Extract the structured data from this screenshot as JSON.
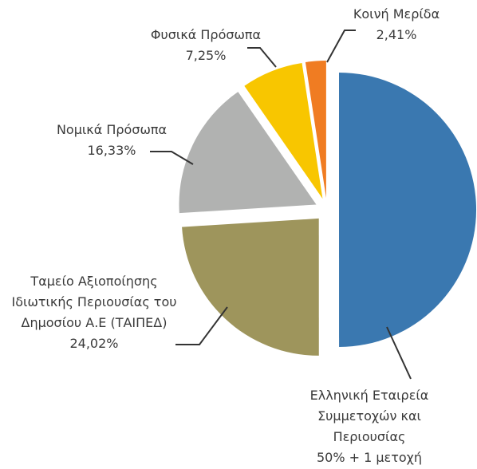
{
  "chart_data": {
    "type": "pie",
    "categories": [
      "Ελληνική Εταιρεία Συμμετοχών και Περιουσίας",
      "Ταμείο Αξιοποίησης Ιδιωτικής Περιουσίας του Δημοσίου Α.Ε (ΤΑΙΠΕΔ)",
      "Νομικά Πρόσωπα",
      "Φυσικά Πρόσωπα",
      "Κοινή Μερίδα"
    ],
    "values": [
      50,
      24.02,
      16.33,
      7.25,
      2.41
    ],
    "value_labels": [
      "50% + 1 μετοχή",
      "24,02%",
      "16,33%",
      "7,25%",
      "2,41%"
    ],
    "colors": [
      "#3a78b0",
      "#9e955c",
      "#b1b2b1",
      "#f8c600",
      "#f07c22"
    ]
  }
}
